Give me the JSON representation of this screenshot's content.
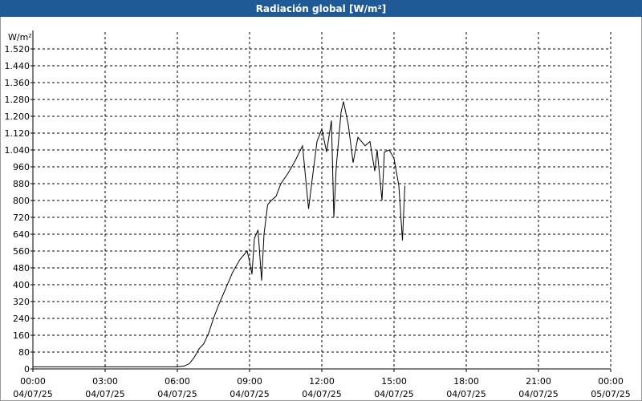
{
  "window": {
    "title": "Radiación global [W/m²]"
  },
  "chart_data": {
    "type": "line",
    "title": "Radiación global [W/m²]",
    "ylabel": "W/m²",
    "xlabel": "",
    "ylim": [
      0,
      1600
    ],
    "xlim": [
      0,
      24
    ],
    "y_ticks": [
      0,
      80,
      160,
      240,
      320,
      400,
      480,
      560,
      640,
      720,
      800,
      880,
      960,
      1040,
      1120,
      1200,
      1280,
      1360,
      1440,
      1520
    ],
    "y_tick_labels": [
      "0",
      "80",
      "160",
      "240",
      "320",
      "400",
      "480",
      "560",
      "640",
      "720",
      "800",
      "880",
      "960",
      "1.040",
      "1.120",
      "1.200",
      "1.280",
      "1.360",
      "1.440",
      "1.520"
    ],
    "x_ticks": [
      {
        "hour": 0,
        "time": "00:00",
        "date": "04/07/25"
      },
      {
        "hour": 3,
        "time": "03:00",
        "date": "04/07/25"
      },
      {
        "hour": 6,
        "time": "06:00",
        "date": "04/07/25"
      },
      {
        "hour": 9,
        "time": "09:00",
        "date": "04/07/25"
      },
      {
        "hour": 12,
        "time": "12:00",
        "date": "04/07/25"
      },
      {
        "hour": 15,
        "time": "15:00",
        "date": "04/07/25"
      },
      {
        "hour": 18,
        "time": "18:00",
        "date": "04/07/25"
      },
      {
        "hour": 21,
        "time": "21:00",
        "date": "04/07/25"
      },
      {
        "hour": 24,
        "time": "00:00",
        "date": "05/07/25"
      }
    ],
    "grid": true,
    "series": [
      {
        "color": "#000000",
        "x": [
          0,
          6.0,
          6.3,
          6.5,
          6.7,
          6.9,
          7.1,
          7.3,
          7.5,
          7.7,
          8.0,
          8.3,
          8.6,
          8.9,
          9.0,
          9.1,
          9.2,
          9.35,
          9.5,
          9.6,
          9.75,
          9.9,
          10.1,
          10.3,
          10.6,
          10.9,
          11.2,
          11.45,
          11.6,
          11.8,
          12.0,
          12.2,
          12.4,
          12.5,
          12.6,
          12.8,
          12.9,
          13.1,
          13.3,
          13.5,
          13.8,
          14.0,
          14.2,
          14.3,
          14.5,
          14.6,
          14.8,
          15.0,
          15.2,
          15.35,
          15.45
        ],
        "y": [
          10,
          10,
          14,
          25,
          55,
          95,
          120,
          170,
          240,
          300,
          380,
          460,
          520,
          560,
          510,
          450,
          620,
          660,
          420,
          640,
          780,
          800,
          820,
          880,
          930,
          990,
          1060,
          760,
          900,
          1080,
          1140,
          1030,
          1180,
          720,
          960,
          1220,
          1270,
          1160,
          980,
          1100,
          1060,
          1080,
          940,
          1040,
          800,
          1030,
          1040,
          1000,
          870,
          610,
          870
        ]
      }
    ]
  }
}
